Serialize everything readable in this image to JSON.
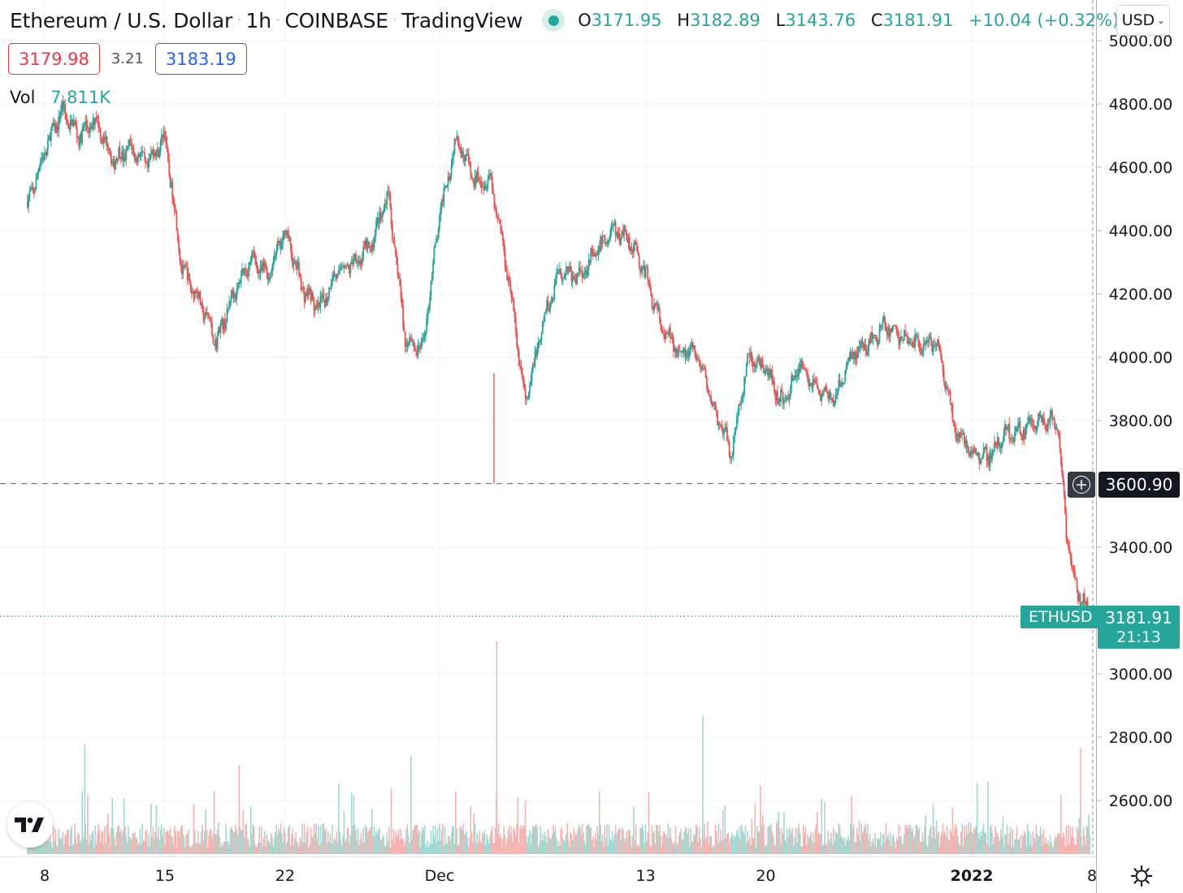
{
  "header": {
    "symbol_name": "Ethereum / U.S. Dollar",
    "interval": "1h",
    "exchange": "COINBASE",
    "provider": "TradingView",
    "separator": "·",
    "market_status": "open",
    "ohlc": {
      "open_label": "O",
      "open": "3171.95",
      "high_label": "H",
      "high": "3182.89",
      "low_label": "L",
      "low": "3143.76",
      "close_label": "C",
      "close": "3181.91",
      "change": "+10.04 (+0.32%)"
    }
  },
  "quote": {
    "sell": "3179.98",
    "spread": "3.21",
    "buy": "3183.19"
  },
  "volume": {
    "label": "Vol",
    "value": "7.811K"
  },
  "currency_button": {
    "label": "USD",
    "icon": "chevron-down-icon"
  },
  "crosshair": {
    "price": "3600.90",
    "icon": "plus-circle-icon"
  },
  "last_price": {
    "symbol": "ETHUSD",
    "price": "3181.91",
    "countdown": "21:13"
  },
  "colors": {
    "up": "#26a69a",
    "down": "#ef5350",
    "vol_up": "#9fd9d2",
    "vol_down": "#f5b3b1"
  },
  "chart_data": {
    "type": "candlestick",
    "price_axis": {
      "ticks": [
        "5000.00",
        "4800.00",
        "4600.00",
        "4400.00",
        "4200.00",
        "4000.00",
        "3800.00",
        "3400.00",
        "3000.00",
        "2800.00",
        "2600.00"
      ],
      "range": [
        2440,
        5060
      ],
      "position": "right"
    },
    "time_axis": {
      "ticks": [
        "8",
        "15",
        "22",
        "Dec",
        "13",
        "20",
        "2022",
        "8"
      ],
      "range": [
        "2021-11-08",
        "2022-01-08"
      ]
    },
    "grid": true,
    "price_path": [
      [
        "2021-11-07",
        4480
      ],
      [
        "2021-11-08",
        4650
      ],
      [
        "2021-11-09",
        4780
      ],
      [
        "2021-11-10",
        4700
      ],
      [
        "2021-11-11",
        4750
      ],
      [
        "2021-11-12",
        4620
      ],
      [
        "2021-11-13",
        4660
      ],
      [
        "2021-11-14",
        4610
      ],
      [
        "2021-11-15",
        4700
      ],
      [
        "2021-11-16",
        4280
      ],
      [
        "2021-11-17",
        4180
      ],
      [
        "2021-11-18",
        4050
      ],
      [
        "2021-11-19",
        4200
      ],
      [
        "2021-11-20",
        4310
      ],
      [
        "2021-11-21",
        4260
      ],
      [
        "2021-11-22",
        4400
      ],
      [
        "2021-11-23",
        4220
      ],
      [
        "2021-11-24",
        4150
      ],
      [
        "2021-11-25",
        4270
      ],
      [
        "2021-11-26",
        4300
      ],
      [
        "2021-11-27",
        4350
      ],
      [
        "2021-11-28",
        4520
      ],
      [
        "2021-11-29",
        4060
      ],
      [
        "2021-11-30",
        4020
      ],
      [
        "2021-12-01",
        4450
      ],
      [
        "2021-12-02",
        4700
      ],
      [
        "2021-12-03",
        4560
      ],
      [
        "2021-12-04",
        4560
      ],
      [
        "2021-12-05",
        4260
      ],
      [
        "2021-12-06",
        3850
      ],
      [
        "2021-12-07",
        4100
      ],
      [
        "2021-12-08",
        4280
      ],
      [
        "2021-12-09",
        4250
      ],
      [
        "2021-12-10",
        4320
      ],
      [
        "2021-12-11",
        4400
      ],
      [
        "2021-12-12",
        4380
      ],
      [
        "2021-12-13",
        4260
      ],
      [
        "2021-12-14",
        4080
      ],
      [
        "2021-12-15",
        4020
      ],
      [
        "2021-12-16",
        4010
      ],
      [
        "2021-12-17",
        3830
      ],
      [
        "2021-12-18",
        3700
      ],
      [
        "2021-12-19",
        4000
      ],
      [
        "2021-12-20",
        3960
      ],
      [
        "2021-12-21",
        3850
      ],
      [
        "2021-12-22",
        3980
      ],
      [
        "2021-12-23",
        3900
      ],
      [
        "2021-12-24",
        3860
      ],
      [
        "2021-12-25",
        4010
      ],
      [
        "2021-12-26",
        4040
      ],
      [
        "2021-12-27",
        4100
      ],
      [
        "2021-12-28",
        4060
      ],
      [
        "2021-12-29",
        4040
      ],
      [
        "2021-12-30",
        4050
      ],
      [
        "2021-12-31",
        3780
      ],
      [
        "2022-01-01",
        3700
      ],
      [
        "2022-01-02",
        3690
      ],
      [
        "2022-01-03",
        3760
      ],
      [
        "2022-01-04",
        3770
      ],
      [
        "2022-01-05",
        3800
      ],
      [
        "2022-01-06",
        3790
      ],
      [
        "2022-01-06T12",
        3450
      ],
      [
        "2022-01-07",
        3280
      ],
      [
        "2022-01-08",
        3180
      ]
    ],
    "notable_lows": [
      [
        "2021-12-04",
        3600.9
      ]
    ],
    "notable_volume_spikes": [
      "2021-11-10",
      "2021-11-19",
      "2021-11-29",
      "2021-12-04",
      "2021-12-16",
      "2022-01-07"
    ]
  }
}
